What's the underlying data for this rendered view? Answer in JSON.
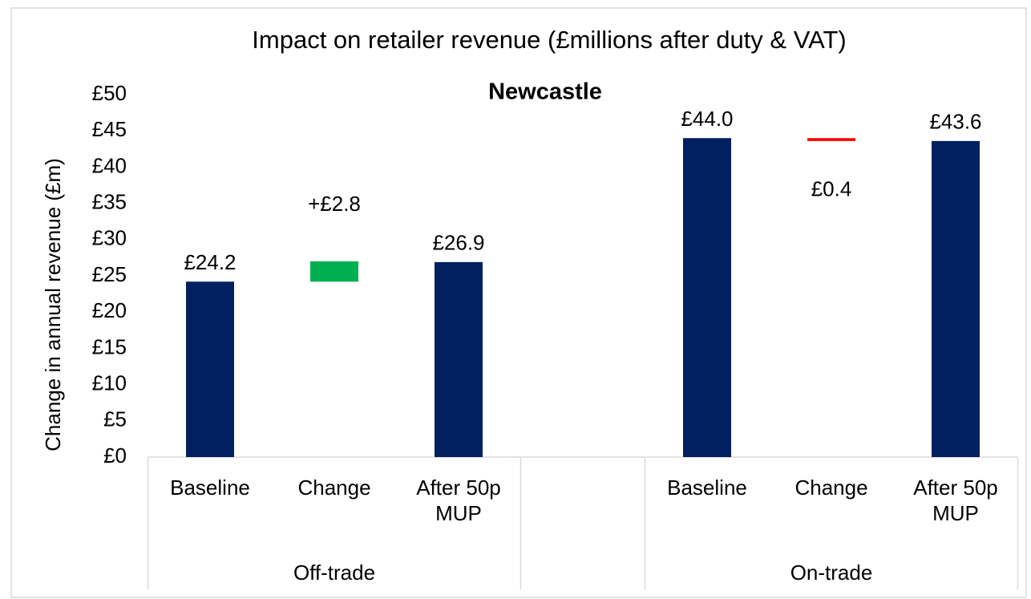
{
  "chart_data": {
    "type": "waterfall",
    "title": "Impact on retailer revenue (£millions after duty & VAT)",
    "subtitle": "Newcastle",
    "y_label": "Change in annual revenue (£m)",
    "categories": [
      "Baseline",
      "Change",
      "After 50p MUP",
      null,
      "Baseline",
      "Change",
      "After 50p MUP"
    ],
    "groups": [
      "Off-trade",
      "On-trade"
    ],
    "values": [
      24.2,
      2.8,
      26.9,
      null,
      44.0,
      -0.4,
      43.6
    ],
    "value_labels": [
      "£24.2",
      "+£2.8",
      "£26.9",
      null,
      "£44.0",
      "£0.4",
      "£43.6"
    ],
    "colors": [
      "#002060",
      "#00b050",
      "#002060",
      null,
      "#002060",
      "#ff0000",
      "#002060"
    ],
    "ylim": [
      0,
      50
    ],
    "yticks": [
      {
        "value": 0,
        "label": "£0"
      },
      {
        "value": 5,
        "label": "£5"
      },
      {
        "value": 10,
        "label": "£10"
      },
      {
        "value": 15,
        "label": "£15"
      },
      {
        "value": 20,
        "label": "£20"
      },
      {
        "value": 25,
        "label": "£25"
      },
      {
        "value": 30,
        "label": "£30"
      },
      {
        "value": 35,
        "label": "£35"
      },
      {
        "value": 40,
        "label": "£40"
      },
      {
        "value": 45,
        "label": "£45"
      },
      {
        "value": 50,
        "label": "£50"
      }
    ],
    "grid": false
  }
}
